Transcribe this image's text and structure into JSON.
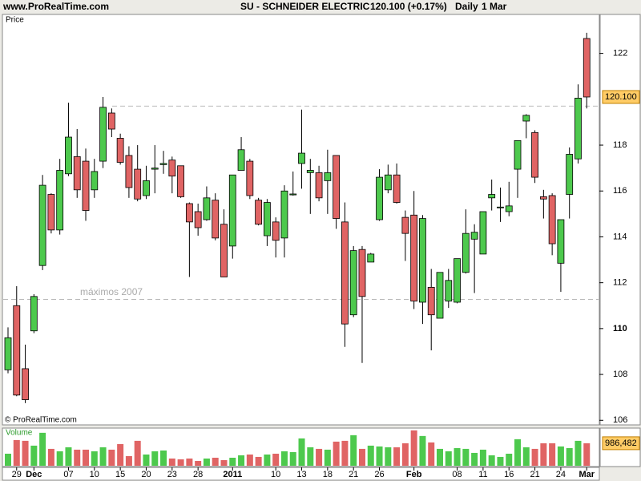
{
  "header": {
    "site": "www.ProRealTime.com",
    "title": "SU - SCHNEIDER ELECTRIC",
    "quote": "120.100 (+0.17%)",
    "period": "Daily",
    "date": "1 Mar"
  },
  "chart_data": [
    {
      "type": "candlestick",
      "title": "Price",
      "source": "© ProRealTime.com",
      "categories": [
        null,
        "29",
        null,
        "Dec",
        null,
        null,
        null,
        "07",
        null,
        null,
        "10",
        null,
        null,
        "15",
        null,
        null,
        "20",
        null,
        null,
        "23",
        null,
        null,
        "28",
        null,
        null,
        null,
        "2011",
        null,
        null,
        null,
        null,
        "10",
        null,
        null,
        "13",
        null,
        null,
        "18",
        null,
        null,
        "21",
        null,
        null,
        "26",
        null,
        null,
        null,
        "Feb",
        null,
        null,
        null,
        null,
        "08",
        null,
        null,
        "11",
        null,
        null,
        "16",
        null,
        null,
        "21",
        null,
        null,
        "24",
        null,
        null,
        "Mar"
      ],
      "open": [
        108.2,
        111.0,
        108.25,
        109.9,
        112.75,
        115.85,
        114.3,
        116.75,
        117.5,
        117.3,
        116.05,
        117.3,
        119.4,
        118.3,
        117.55,
        116.95,
        115.8,
        116.95,
        117.15,
        117.35,
        117.1,
        115.45,
        115.1,
        114.75,
        115.6,
        114.55,
        113.6,
        116.9,
        117.3,
        115.6,
        114.05,
        114.65,
        113.95,
        115.83,
        117.2,
        116.8,
        116.8,
        116.45,
        117.55,
        114.65,
        110.6,
        113.45,
        112.9,
        114.75,
        116.05,
        116.7,
        114.85,
        114.95,
        111.15,
        111.8,
        110.45,
        111.2,
        111.15,
        112.45,
        113.9,
        113.25,
        115.7,
        115.28,
        115.1,
        116.95,
        119.05,
        118.55,
        115.75,
        115.8,
        112.85,
        115.85,
        117.4,
        122.65
      ],
      "high": [
        110.05,
        111.85,
        109.3,
        111.5,
        116.7,
        115.9,
        117.4,
        119.85,
        118.7,
        117.85,
        117.4,
        120.1,
        119.6,
        118.5,
        117.95,
        118.0,
        117.1,
        118.0,
        117.75,
        117.5,
        117.1,
        115.5,
        115.45,
        116.2,
        115.9,
        115.2,
        116.7,
        118.35,
        117.4,
        115.7,
        115.65,
        114.85,
        116.25,
        116.85,
        119.55,
        117.4,
        117.1,
        117.8,
        117.55,
        115.5,
        113.6,
        113.6,
        113.3,
        116.95,
        117.15,
        117.2,
        115.15,
        116.0,
        114.95,
        112.6,
        112.45,
        112.6,
        113.05,
        115.2,
        114.55,
        115.1,
        116.5,
        116.15,
        116.4,
        118.2,
        119.35,
        118.65,
        116.05,
        115.9,
        114.75,
        117.9,
        120.65,
        122.9
      ],
      "low": [
        108.05,
        107.05,
        106.75,
        109.8,
        112.55,
        114.15,
        114.1,
        116.65,
        115.7,
        114.7,
        115.7,
        117.0,
        118.35,
        117.15,
        115.7,
        115.55,
        115.65,
        115.9,
        116.75,
        115.9,
        115.7,
        112.25,
        114.05,
        114.7,
        113.85,
        112.25,
        113.05,
        116.9,
        115.65,
        114.5,
        113.6,
        113.1,
        113.1,
        115.8,
        116.1,
        115.0,
        115.55,
        115.0,
        114.35,
        109.2,
        110.5,
        108.5,
        112.9,
        114.7,
        115.9,
        115.45,
        112.95,
        110.85,
        110.2,
        109.05,
        110.45,
        110.9,
        111.1,
        112.4,
        111.55,
        113.25,
        115.15,
        114.65,
        114.9,
        115.7,
        118.3,
        116.35,
        114.8,
        113.2,
        111.6,
        114.8,
        117.2,
        119.6
      ],
      "close": [
        109.6,
        107.1,
        106.9,
        111.4,
        116.25,
        114.3,
        116.9,
        118.35,
        116.05,
        115.15,
        116.85,
        119.65,
        118.7,
        117.25,
        116.15,
        115.65,
        116.45,
        117.0,
        117.2,
        116.65,
        115.75,
        114.65,
        114.4,
        115.7,
        113.95,
        112.25,
        116.7,
        117.8,
        115.8,
        114.55,
        115.5,
        113.85,
        116.0,
        115.87,
        117.65,
        116.9,
        115.7,
        116.8,
        114.8,
        110.2,
        113.4,
        111.4,
        113.25,
        116.6,
        116.7,
        115.5,
        114.15,
        111.2,
        114.8,
        110.6,
        112.45,
        112.1,
        113.05,
        114.15,
        114.2,
        115.1,
        115.85,
        115.3,
        115.35,
        118.2,
        119.3,
        116.6,
        115.65,
        113.7,
        114.75,
        117.6,
        120.05,
        120.1
      ],
      "up_color": "#4dc94d",
      "down_color": "#e06464",
      "ylim": [
        105.8,
        123.7
      ],
      "yticks": [
        106,
        108,
        110,
        112,
        114,
        116,
        118,
        122
      ],
      "price_label": {
        "value": 120.1,
        "label": "120.100"
      },
      "hlines": [
        119.7,
        111.27
      ],
      "annotation": "máximos 2007"
    },
    {
      "type": "bar",
      "title": "Volume",
      "values": [
        528000,
        1127000,
        1092000,
        881000,
        1444000,
        740000,
        634000,
        810000,
        705000,
        705000,
        634000,
        810000,
        705000,
        951000,
        423000,
        1092000,
        493000,
        634000,
        669000,
        317000,
        282000,
        317000,
        211000,
        317000,
        352000,
        247000,
        352000,
        458000,
        493000,
        388000,
        493000,
        528000,
        634000,
        599000,
        1198000,
        810000,
        740000,
        705000,
        1057000,
        1092000,
        1339000,
        740000,
        881000,
        846000,
        810000,
        810000,
        986000,
        1550000,
        1304000,
        1022000,
        740000,
        634000,
        775000,
        740000,
        564000,
        705000,
        458000,
        388000,
        528000,
        1163000,
        810000,
        740000,
        986000,
        986000,
        846000,
        775000,
        1092000,
        986482
      ],
      "ylim": [
        0,
        1650000
      ],
      "yticks": [
        {
          "value": 986482,
          "label": "986,482"
        }
      ]
    }
  ]
}
